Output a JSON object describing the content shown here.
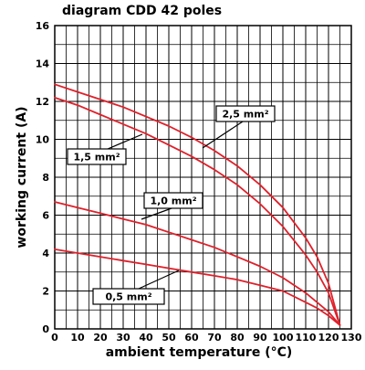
{
  "chart_data": {
    "type": "line",
    "title": "diagram CDD 42 poles",
    "xlabel": "ambient temperature (°C)",
    "ylabel": "working current (A)",
    "xlim": [
      0,
      130
    ],
    "ylim": [
      0,
      16
    ],
    "x_ticks": [
      0,
      10,
      20,
      30,
      40,
      50,
      60,
      70,
      80,
      90,
      100,
      110,
      120,
      130
    ],
    "y_ticks": [
      0,
      2,
      4,
      6,
      8,
      10,
      12,
      14,
      16
    ],
    "grid": true,
    "colors": {
      "series": "#e0202a",
      "grid": "#000000"
    },
    "series": [
      {
        "name": "2,5 mm²",
        "x": [
          0,
          10,
          20,
          30,
          40,
          50,
          60,
          70,
          80,
          90,
          100,
          110,
          115,
          120,
          125
        ],
        "y": [
          12.9,
          12.5,
          12.1,
          11.7,
          11.2,
          10.7,
          10.1,
          9.4,
          8.6,
          7.6,
          6.4,
          4.8,
          3.8,
          2.4,
          0.2
        ]
      },
      {
        "name": "1,5 mm²",
        "x": [
          0,
          10,
          20,
          30,
          40,
          50,
          60,
          70,
          80,
          90,
          100,
          110,
          115,
          120,
          125
        ],
        "y": [
          12.2,
          11.8,
          11.3,
          10.8,
          10.3,
          9.7,
          9.1,
          8.4,
          7.6,
          6.6,
          5.4,
          3.9,
          3.0,
          1.9,
          0.2
        ]
      },
      {
        "name": "1,0 mm²",
        "x": [
          0,
          10,
          20,
          30,
          40,
          50,
          60,
          70,
          80,
          90,
          100,
          110,
          115,
          120,
          125
        ],
        "y": [
          6.7,
          6.4,
          6.1,
          5.8,
          5.5,
          5.1,
          4.7,
          4.3,
          3.8,
          3.3,
          2.7,
          1.9,
          1.4,
          0.9,
          0.2
        ]
      },
      {
        "name": "0,5 mm²",
        "x": [
          0,
          10,
          20,
          30,
          40,
          50,
          60,
          70,
          80,
          90,
          100,
          110,
          115,
          120,
          125
        ],
        "y": [
          4.2,
          4.0,
          3.8,
          3.6,
          3.4,
          3.2,
          3.0,
          2.8,
          2.6,
          2.3,
          2.0,
          1.4,
          1.1,
          0.7,
          0.2
        ]
      }
    ]
  }
}
